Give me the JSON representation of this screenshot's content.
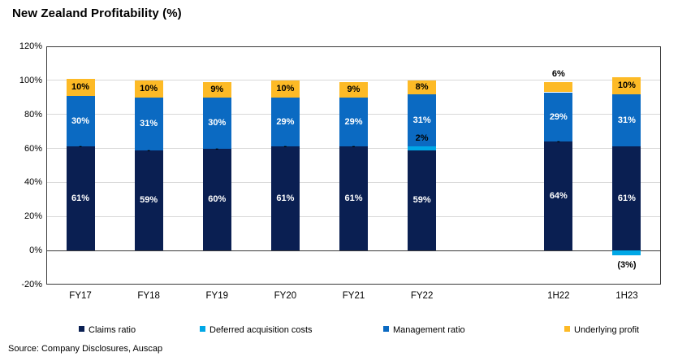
{
  "footer": {
    "source": "Source: Company Disclosures, Auscap"
  },
  "chart_data": {
    "type": "bar",
    "stacked": true,
    "title": "New Zealand Profitability (%)",
    "categories": [
      "FY17",
      "FY18",
      "FY19",
      "FY20",
      "FY21",
      "FY22",
      "",
      "1H22",
      "1H23"
    ],
    "series": [
      {
        "name": "Claims ratio",
        "color": "#0A1F52",
        "label_color": "#ffffff",
        "values": [
          61,
          59,
          60,
          61,
          61,
          59,
          null,
          64,
          61
        ],
        "labels": [
          "61%",
          "59%",
          "60%",
          "61%",
          "61%",
          "59%",
          "",
          "64%",
          "61%"
        ]
      },
      {
        "name": "Deferred acquisition costs",
        "color": "#00A7E6",
        "label_color": "#000000",
        "values": [
          0,
          0,
          0,
          0,
          0,
          2,
          null,
          0,
          -3
        ],
        "labels": [
          "-",
          "-",
          "-",
          "-",
          "-",
          "2%",
          "",
          "-",
          "(3%)"
        ]
      },
      {
        "name": "Management ratio",
        "color": "#0B6AC2",
        "label_color": "#ffffff",
        "values": [
          30,
          31,
          30,
          29,
          29,
          31,
          null,
          29,
          31
        ],
        "labels": [
          "30%",
          "31%",
          "30%",
          "29%",
          "29%",
          "31%",
          "",
          "29%",
          "31%"
        ]
      },
      {
        "name": "Underlying profit",
        "color": "#FDBA26",
        "label_color": "#000000",
        "values": [
          10,
          10,
          9,
          10,
          9,
          8,
          null,
          6,
          10
        ],
        "labels": [
          "10%",
          "10%",
          "9%",
          "10%",
          "9%",
          "8%",
          "",
          "6%",
          "10%"
        ]
      }
    ],
    "ylim": [
      -20,
      120
    ],
    "ytick_step": 20,
    "ytick_labels": [
      "120%",
      "100%",
      "80%",
      "60%",
      "40%",
      "20%",
      "0%",
      "-20%"
    ],
    "grid": "horizontal",
    "legend_position": "bottom"
  }
}
